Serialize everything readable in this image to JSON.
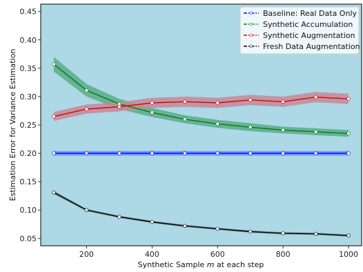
{
  "chart_data": {
    "type": "line",
    "xlabel_prefix": "Synthetic Sample ",
    "xlabel_var": "m",
    "xlabel_suffix": " at each step",
    "ylabel": "Estimation Error for Variance Estimation",
    "xlim": [
      60,
      1040
    ],
    "ylim": [
      0.037,
      0.463
    ],
    "x_ticks": [
      200,
      400,
      600,
      800,
      1000
    ],
    "y_ticks": [
      0.05,
      0.1,
      0.15,
      0.2,
      0.25,
      0.3,
      0.35,
      0.4,
      0.45
    ],
    "x": [
      100,
      200,
      300,
      400,
      500,
      600,
      700,
      800,
      900,
      1000
    ],
    "background": "#add8e6",
    "legend_position": "top-right",
    "series": [
      {
        "name": "Baseline: Real Data Only",
        "color": "#0000ff",
        "band_color": "#6a8cf0",
        "values": [
          0.2,
          0.2,
          0.2,
          0.2,
          0.2,
          0.2,
          0.2,
          0.2,
          0.2,
          0.2
        ],
        "band": [
          0.004,
          0.004,
          0.004,
          0.004,
          0.004,
          0.004,
          0.004,
          0.004,
          0.004,
          0.004
        ]
      },
      {
        "name": "Synthetic Accumulation",
        "color": "#008000",
        "band_color": "#5aac8a",
        "values": [
          0.357,
          0.311,
          0.287,
          0.272,
          0.26,
          0.252,
          0.246,
          0.241,
          0.238,
          0.235
        ],
        "band": [
          0.013,
          0.011,
          0.009,
          0.008,
          0.007,
          0.007,
          0.007,
          0.006,
          0.006,
          0.006
        ]
      },
      {
        "name": "Synthetic Augmentation",
        "color": "#dd0000",
        "band_color": "#c48a98",
        "values": [
          0.265,
          0.278,
          0.282,
          0.289,
          0.291,
          0.289,
          0.294,
          0.291,
          0.299,
          0.296
        ],
        "band": [
          0.008,
          0.008,
          0.008,
          0.009,
          0.009,
          0.009,
          0.009,
          0.009,
          0.009,
          0.009
        ]
      },
      {
        "name": "Fresh Data Augmentation",
        "color": "#000000",
        "band_color": "#6e8f97",
        "values": [
          0.131,
          0.1,
          0.088,
          0.079,
          0.072,
          0.067,
          0.062,
          0.059,
          0.058,
          0.055
        ],
        "band": [
          0.003,
          0.002,
          0.002,
          0.002,
          0.002,
          0.002,
          0.002,
          0.002,
          0.002,
          0.002
        ]
      }
    ]
  }
}
